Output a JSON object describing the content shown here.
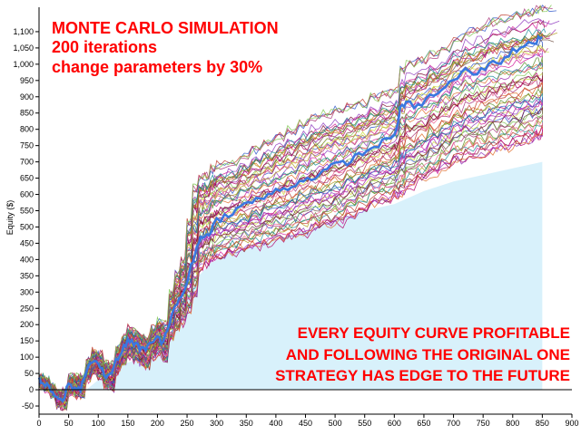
{
  "chart_data": {
    "type": "line",
    "title_lines": [
      "MONTE CARLO SIMULATION",
      "200 iterations",
      "change parameters by 30%"
    ],
    "annotation_lines": [
      "EVERY EQUITY CURVE PROFITABLE",
      "AND FOLLOWING THE ORIGINAL ONE",
      "STRATEGY HAS EDGE TO THE FUTURE"
    ],
    "xlabel": "",
    "ylabel": "Equity ($)",
    "xlim": [
      0,
      900
    ],
    "ylim": [
      -75,
      1175
    ],
    "x_ticks": [
      0,
      50,
      100,
      150,
      200,
      250,
      300,
      350,
      400,
      450,
      500,
      550,
      600,
      650,
      700,
      750,
      800,
      850,
      900
    ],
    "y_ticks": [
      -50,
      0,
      50,
      100,
      150,
      200,
      250,
      300,
      350,
      400,
      450,
      500,
      550,
      600,
      650,
      700,
      750,
      800,
      850,
      900,
      950,
      1000,
      1050,
      1100
    ],
    "y_tick_labels": [
      "-50",
      "0",
      "50",
      "100",
      "150",
      "200",
      "250",
      "300",
      "350",
      "400",
      "450",
      "500",
      "550",
      "600",
      "650",
      "700",
      "750",
      "800",
      "850",
      "900",
      "950",
      "1,000",
      "1,050",
      "1,100"
    ],
    "grid": false,
    "iterations": 200,
    "original_series": {
      "name": "",
      "color": "#3a78e0",
      "x": [
        0,
        10,
        20,
        30,
        40,
        50,
        60,
        70,
        80,
        90,
        100,
        110,
        120,
        130,
        140,
        150,
        160,
        170,
        180,
        190,
        200,
        210,
        220,
        230,
        240,
        250,
        260,
        270,
        280,
        290,
        300,
        320,
        340,
        360,
        380,
        400,
        420,
        440,
        460,
        480,
        500,
        520,
        540,
        560,
        580,
        600,
        610,
        620,
        640,
        660,
        680,
        700,
        720,
        740,
        760,
        780,
        800,
        820,
        840,
        850
      ],
      "y": [
        30,
        15,
        0,
        -30,
        -35,
        20,
        0,
        5,
        60,
        90,
        80,
        45,
        40,
        90,
        120,
        150,
        140,
        130,
        120,
        150,
        160,
        140,
        210,
        260,
        280,
        330,
        400,
        460,
        470,
        490,
        520,
        540,
        560,
        580,
        590,
        610,
        620,
        640,
        650,
        670,
        690,
        700,
        720,
        740,
        760,
        780,
        860,
        880,
        870,
        900,
        920,
        950,
        980,
        970,
        1000,
        1010,
        1040,
        1060,
        1070,
        1090
      ]
    },
    "area_series": {
      "color": "#d8f1fb",
      "x": [
        0,
        20,
        40,
        60,
        80,
        100,
        130,
        160,
        200,
        230,
        250,
        270,
        290,
        320,
        360,
        400,
        450,
        500,
        550,
        600,
        650,
        700,
        750,
        800,
        850
      ],
      "y": [
        0,
        0,
        0,
        0,
        0,
        30,
        70,
        90,
        110,
        200,
        290,
        350,
        390,
        420,
        440,
        460,
        490,
        520,
        550,
        570,
        610,
        640,
        660,
        680,
        700
      ]
    },
    "band_upper": [
      40,
      30,
      10,
      -10,
      0,
      40,
      40,
      40,
      90,
      120,
      110,
      80,
      80,
      130,
      160,
      190,
      180,
      170,
      160,
      190,
      210,
      200,
      300,
      360,
      400,
      520,
      620,
      660,
      660,
      680,
      690,
      700,
      720,
      740,
      760,
      780,
      800,
      820,
      840,
      850,
      860,
      870,
      880,
      900,
      910,
      920,
      980,
      1000,
      1010,
      1030,
      1050,
      1080,
      1100,
      1110,
      1130,
      1140,
      1150,
      1160,
      1170,
      1170
    ],
    "band_lower": [
      10,
      0,
      -20,
      -50,
      -55,
      -10,
      -20,
      -20,
      30,
      50,
      40,
      10,
      0,
      50,
      80,
      100,
      90,
      80,
      70,
      100,
      110,
      90,
      150,
      180,
      200,
      230,
      280,
      360,
      380,
      390,
      400,
      410,
      420,
      430,
      440,
      450,
      460,
      470,
      480,
      490,
      500,
      520,
      540,
      560,
      570,
      580,
      590,
      610,
      630,
      650,
      670,
      690,
      700,
      710,
      720,
      730,
      740,
      750,
      760,
      770
    ],
    "line_colors": [
      "#b5006a",
      "#7a0a30",
      "#d11a9a",
      "#8f3bbf",
      "#e06d2b",
      "#b29a1c",
      "#5a8f2f",
      "#1a8d9a",
      "#2a54c9",
      "#c0392b",
      "#a83279",
      "#7ec850",
      "#f06292",
      "#9c27b0",
      "#cddc39",
      "#6d4c41"
    ]
  }
}
